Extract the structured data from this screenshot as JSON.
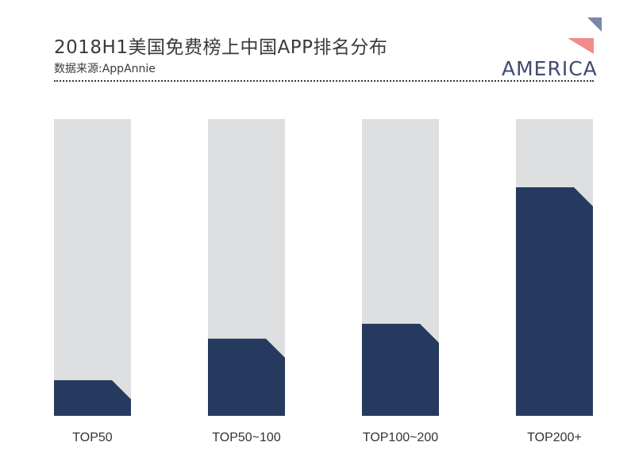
{
  "title": "2018H1美国免费榜上中国APP排名分布",
  "subtitle": "数据来源:AppAnnie",
  "brand": {
    "text": "AMERICA",
    "accent_colors": [
      "#f08c8c",
      "#7b87a8"
    ]
  },
  "chart_data": {
    "type": "bar",
    "categories": [
      "TOP50",
      "TOP50~100",
      "TOP100~200",
      "TOP200+"
    ],
    "values": [
      12,
      26,
      31,
      77
    ],
    "ylim": [
      0,
      100
    ],
    "grid": false,
    "colors": {
      "bar": "#263a5f",
      "track": "#dedfe0",
      "label": "#333333"
    }
  }
}
